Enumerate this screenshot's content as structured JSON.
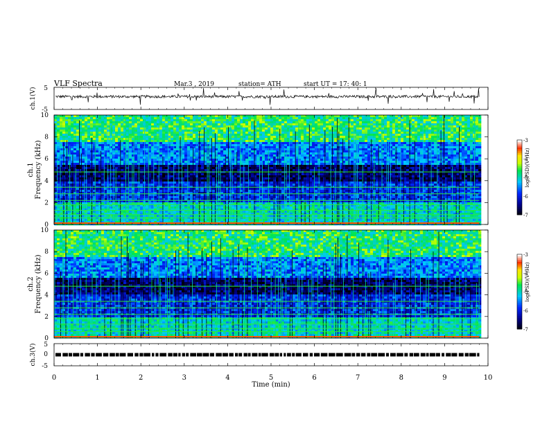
{
  "header": {
    "title": "VLF  Spectra",
    "date": "Mar.3  , 2019",
    "station": "station= ATH",
    "start": "start  UT  =   17: 40: 1"
  },
  "chart_data": [
    {
      "type": "line",
      "panel": "ch1-waveform",
      "ylabel": "ch.1(V)",
      "yticks": [
        "5",
        "-5"
      ],
      "ylim": [
        -5,
        5
      ],
      "xlim": [
        0,
        10
      ],
      "x_extent": [
        0,
        9.8
      ],
      "baseline": 0.8,
      "color": "#000000"
    },
    {
      "type": "heatmap",
      "panel": "ch1-spectrogram",
      "ylabel_top": "ch.1",
      "ylabel": "Frequency  (kHz)",
      "yticks": [
        "0",
        "2",
        "4",
        "6",
        "8",
        "10"
      ],
      "ylim": [
        0,
        10
      ],
      "xlim": [
        0,
        10
      ],
      "x_extent": [
        0,
        9.8
      ],
      "colorbar": {
        "label": "log(PSD)(V²/Hz)",
        "ticks": [
          "-3",
          "-4",
          "-5",
          "-6",
          "-7"
        ],
        "range": [
          -7,
          -3
        ]
      }
    },
    {
      "type": "heatmap",
      "panel": "ch2-spectrogram",
      "ylabel_top": "ch.2",
      "ylabel": "Frequency  (kHz)",
      "yticks": [
        "0",
        "2",
        "4",
        "6",
        "8",
        "10"
      ],
      "ylim": [
        0,
        10
      ],
      "xlim": [
        0,
        10
      ],
      "x_extent": [
        0,
        9.8
      ],
      "colorbar": {
        "label": "log(PSD)(V²/Hz)",
        "ticks": [
          "-3",
          "-4",
          "-5",
          "-6",
          "-7"
        ],
        "range": [
          -7,
          -3
        ]
      }
    },
    {
      "type": "line",
      "panel": "ch3-waveform",
      "ylabel": "ch.3(V)",
      "yticks": [
        "5",
        "0",
        "-5"
      ],
      "ylim": [
        -5,
        5
      ],
      "xlim": [
        0,
        10
      ],
      "x_extent": [
        0,
        9.8
      ],
      "baseline": 0,
      "color": "#000000"
    }
  ],
  "xaxis": {
    "label": "Time  (min)",
    "ticks": [
      "0",
      "1",
      "2",
      "3",
      "4",
      "5",
      "6",
      "7",
      "8",
      "9",
      "10"
    ],
    "range": [
      0,
      10
    ]
  }
}
